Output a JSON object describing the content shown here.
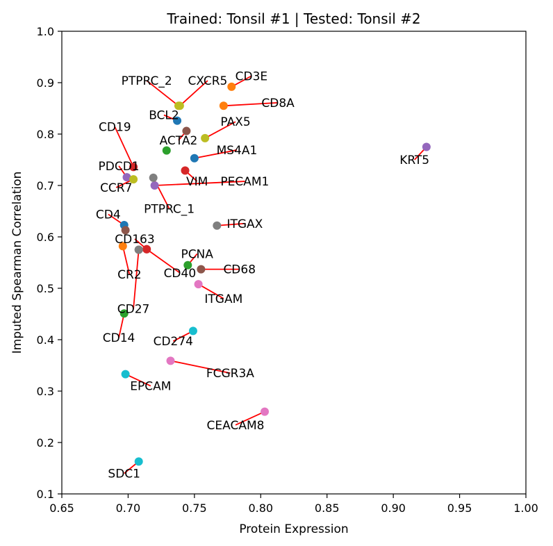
{
  "chart_data": {
    "type": "scatter",
    "title": "Trained: Tonsil #1 | Tested: Tonsil #2",
    "xlabel": "Protein Expression",
    "ylabel": "Imputed Spearman Correlation",
    "xlim": [
      0.65,
      1.0
    ],
    "ylim": [
      0.1,
      1.0
    ],
    "xticks": [
      "0.65",
      "0.70",
      "0.75",
      "0.80",
      "0.85",
      "0.90",
      "0.95",
      "1.00"
    ],
    "yticks": [
      "0.1",
      "0.2",
      "0.3",
      "0.4",
      "0.5",
      "0.6",
      "0.7",
      "0.8",
      "0.9",
      "1.0"
    ],
    "grid": false,
    "leader_line_color": "#ff0000",
    "points": [
      {
        "label": "CD3E",
        "x": 0.778,
        "y": 0.892,
        "color": "#ff7f0e",
        "lx": 0.793,
        "ly": 0.913
      },
      {
        "label": "CXCR5",
        "x": 0.739,
        "y": 0.855,
        "color": "#bcbd22",
        "lx": 0.76,
        "ly": 0.904
      },
      {
        "label": "PTPRC_2",
        "x": 0.738,
        "y": 0.855,
        "color": "#bcbd22",
        "lx": 0.714,
        "ly": 0.904
      },
      {
        "label": "CD8A",
        "x": 0.772,
        "y": 0.855,
        "color": "#ff7f0e",
        "lx": 0.813,
        "ly": 0.861
      },
      {
        "label": "BCL2",
        "x": 0.737,
        "y": 0.826,
        "color": "#1f77b4",
        "lx": 0.727,
        "ly": 0.837
      },
      {
        "label": "CD19",
        "x": 0.704,
        "y": 0.736,
        "color": "#d62728",
        "lx": 0.69,
        "ly": 0.814
      },
      {
        "label": "PAX5",
        "x": 0.758,
        "y": 0.792,
        "color": "#bcbd22",
        "lx": 0.781,
        "ly": 0.824
      },
      {
        "label": "ACTA2",
        "x": 0.744,
        "y": 0.806,
        "color": "#8c564b",
        "lx": 0.738,
        "ly": 0.788
      },
      {
        "label": "MS4A1",
        "x": 0.75,
        "y": 0.753,
        "color": "#1f77b4",
        "lx": 0.782,
        "ly": 0.769
      },
      {
        "label": "CD19b",
        "x": 0.729,
        "y": 0.768,
        "color": "#2ca02c",
        "lx": 0.729,
        "ly": 0.768,
        "hidden_label": true
      },
      {
        "label": "PDCD1",
        "x": 0.699,
        "y": 0.716,
        "color": "#9467bd",
        "lx": 0.693,
        "ly": 0.738
      },
      {
        "label": "VIM",
        "x": 0.743,
        "y": 0.729,
        "color": "#d62728",
        "lx": 0.752,
        "ly": 0.708
      },
      {
        "label": "PECAM1",
        "x": 0.72,
        "y": 0.7,
        "color": "#9467bd",
        "lx": 0.788,
        "ly": 0.708
      },
      {
        "label": "CCR7",
        "x": 0.704,
        "y": 0.712,
        "color": "#bcbd22",
        "lx": 0.691,
        "ly": 0.696
      },
      {
        "label": "PTPRC_1",
        "x": 0.719,
        "y": 0.715,
        "color": "#7f7f7f",
        "lx": 0.731,
        "ly": 0.655
      },
      {
        "label": "KRT5",
        "x": 0.925,
        "y": 0.775,
        "color": "#9467bd",
        "lx": 0.916,
        "ly": 0.75
      },
      {
        "label": "ITGAX",
        "x": 0.767,
        "y": 0.622,
        "color": "#7f7f7f",
        "lx": 0.788,
        "ly": 0.626
      },
      {
        "label": "CD4",
        "x": 0.697,
        "y": 0.623,
        "color": "#1f77b4",
        "lx": 0.685,
        "ly": 0.644
      },
      {
        "label": "CD4b",
        "x": 0.698,
        "y": 0.613,
        "color": "#8c564b",
        "lx": 0.698,
        "ly": 0.613,
        "hidden_label": true
      },
      {
        "label": "CD163",
        "x": 0.714,
        "y": 0.576,
        "color": "#d62728",
        "lx": 0.705,
        "ly": 0.596
      },
      {
        "label": "PCNA",
        "x": 0.745,
        "y": 0.545,
        "color": "#2ca02c",
        "lx": 0.752,
        "ly": 0.567
      },
      {
        "label": "CD40",
        "x": 0.714,
        "y": 0.576,
        "color": "#d62728",
        "lx": 0.739,
        "ly": 0.53
      },
      {
        "label": "CD68",
        "x": 0.755,
        "y": 0.537,
        "color": "#8c564b",
        "lx": 0.784,
        "ly": 0.537
      },
      {
        "label": "CR2",
        "x": 0.696,
        "y": 0.582,
        "color": "#ff7f0e",
        "lx": 0.701,
        "ly": 0.527
      },
      {
        "label": "CD163b",
        "x": 0.708,
        "y": 0.575,
        "color": "#7f7f7f",
        "lx": 0.708,
        "ly": 0.575,
        "hidden_label": true
      },
      {
        "label": "ITGAM",
        "x": 0.753,
        "y": 0.508,
        "color": "#e377c2",
        "lx": 0.772,
        "ly": 0.48
      },
      {
        "label": "CD27",
        "x": 0.708,
        "y": 0.575,
        "color": "#7f7f7f",
        "lx": 0.704,
        "ly": 0.46
      },
      {
        "label": "CD14",
        "x": 0.697,
        "y": 0.451,
        "color": "#2ca02c",
        "lx": 0.693,
        "ly": 0.404
      },
      {
        "label": "CD274",
        "x": 0.749,
        "y": 0.417,
        "color": "#17becf",
        "lx": 0.734,
        "ly": 0.397
      },
      {
        "label": "FCGR3A",
        "x": 0.732,
        "y": 0.359,
        "color": "#e377c2",
        "lx": 0.777,
        "ly": 0.335
      },
      {
        "label": "EPCAM",
        "x": 0.698,
        "y": 0.333,
        "color": "#17becf",
        "lx": 0.717,
        "ly": 0.31
      },
      {
        "label": "CEACAM8",
        "x": 0.803,
        "y": 0.26,
        "color": "#e377c2",
        "lx": 0.781,
        "ly": 0.234
      },
      {
        "label": "SDC1",
        "x": 0.708,
        "y": 0.163,
        "color": "#17becf",
        "lx": 0.697,
        "ly": 0.14
      }
    ]
  }
}
